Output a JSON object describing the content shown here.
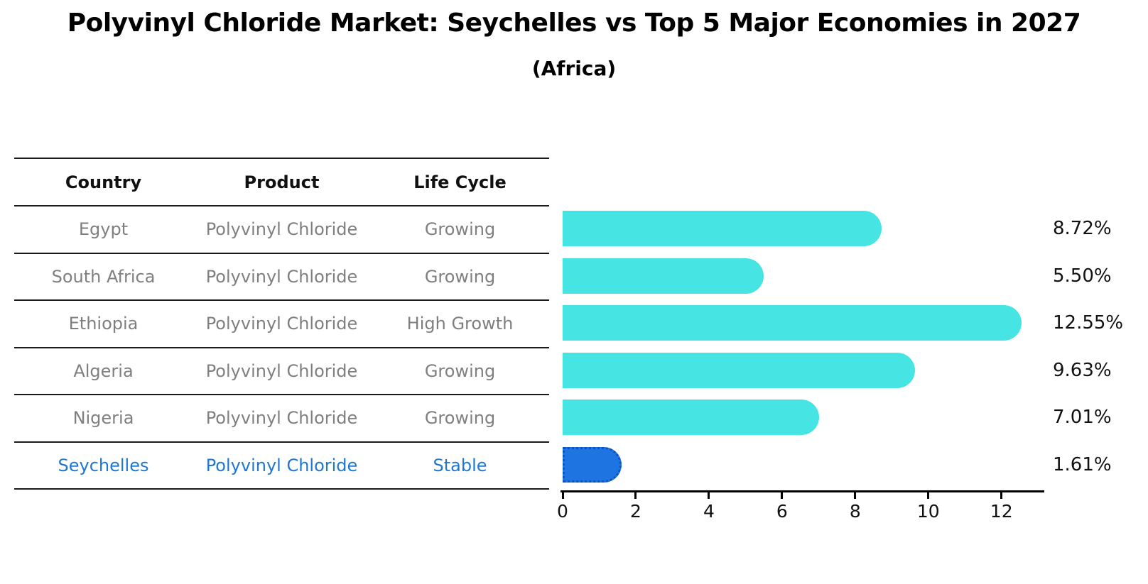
{
  "title": "Polyvinyl Chloride Market: Seychelles vs Top 5 Major Economies in 2027",
  "subtitle": "(Africa)",
  "table": {
    "headers": [
      "Country",
      "Product",
      "Life Cycle"
    ],
    "rows": [
      {
        "country": "Egypt",
        "product": "Polyvinyl Chloride",
        "life_cycle": "Growing",
        "highlight": false
      },
      {
        "country": "South Africa",
        "product": "Polyvinyl Chloride",
        "life_cycle": "Growing",
        "highlight": false
      },
      {
        "country": "Ethiopia",
        "product": "Polyvinyl Chloride",
        "life_cycle": "High Growth",
        "highlight": false
      },
      {
        "country": "Algeria",
        "product": "Polyvinyl Chloride",
        "life_cycle": "Growing",
        "highlight": false
      },
      {
        "country": "Nigeria",
        "product": "Polyvinyl Chloride",
        "life_cycle": "Growing",
        "highlight": false
      },
      {
        "country": "Seychelles",
        "product": "Polyvinyl Chloride",
        "life_cycle": "Stable",
        "highlight": true
      }
    ]
  },
  "chart_data": {
    "type": "bar",
    "orientation": "horizontal",
    "title": "Polyvinyl Chloride Market: Seychelles vs Top 5 Major Economies in 2027",
    "subtitle": "(Africa)",
    "categories": [
      "Egypt",
      "South Africa",
      "Ethiopia",
      "Algeria",
      "Nigeria",
      "Seychelles"
    ],
    "values": [
      8.72,
      5.5,
      12.55,
      9.63,
      7.01,
      1.61
    ],
    "value_labels": [
      "8.72%",
      "5.50%",
      "12.55%",
      "9.63%",
      "7.01%",
      "1.61%"
    ],
    "xlabel": "",
    "ylabel": "",
    "xlim": [
      0,
      13.17
    ],
    "xticks": [
      0,
      2,
      4,
      6,
      8,
      10,
      12
    ],
    "grid": false,
    "legend": false,
    "highlight_index": 5
  },
  "colors": {
    "bar": "#47E4E4",
    "highlight_bar": "#1E74E1",
    "highlight_border": "#0D52C5",
    "highlight_text": "#1F77D4",
    "text": "#111111",
    "muted_text": "#7F7F7F"
  }
}
